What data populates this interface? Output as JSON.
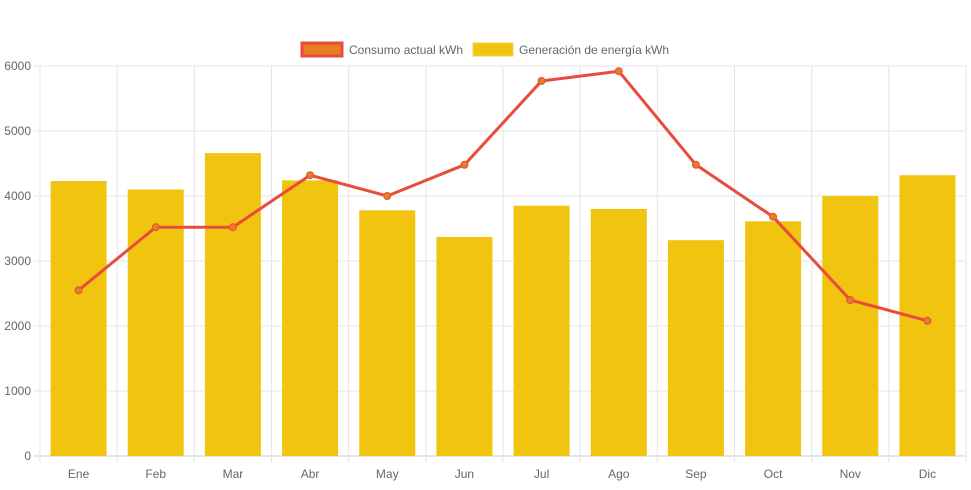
{
  "chart_data": {
    "type": "bar",
    "title": "",
    "xlabel": "",
    "ylabel": "",
    "ylim": [
      0,
      6000
    ],
    "yticks": [
      0,
      1000,
      2000,
      3000,
      4000,
      5000,
      6000
    ],
    "grid": true,
    "legend_position": "top-center",
    "categories": [
      "Ene",
      "Feb",
      "Mar",
      "Abr",
      "May",
      "Jun",
      "Jul",
      "Ago",
      "Sep",
      "Oct",
      "Nov",
      "Dic"
    ],
    "series": [
      {
        "name": "Consumo actual kWh",
        "type": "line",
        "color": "#e74c3c",
        "fill": "#e67e22",
        "values": [
          2550,
          3520,
          3520,
          4320,
          4000,
          4480,
          5770,
          5920,
          4480,
          3680,
          2400,
          2080
        ]
      },
      {
        "name": "Generación de energía kWh",
        "type": "bar",
        "color": "#f1c40f",
        "values": [
          4230,
          4100,
          4660,
          4240,
          3780,
          3370,
          3850,
          3800,
          3320,
          3610,
          4000,
          4320
        ]
      }
    ]
  }
}
